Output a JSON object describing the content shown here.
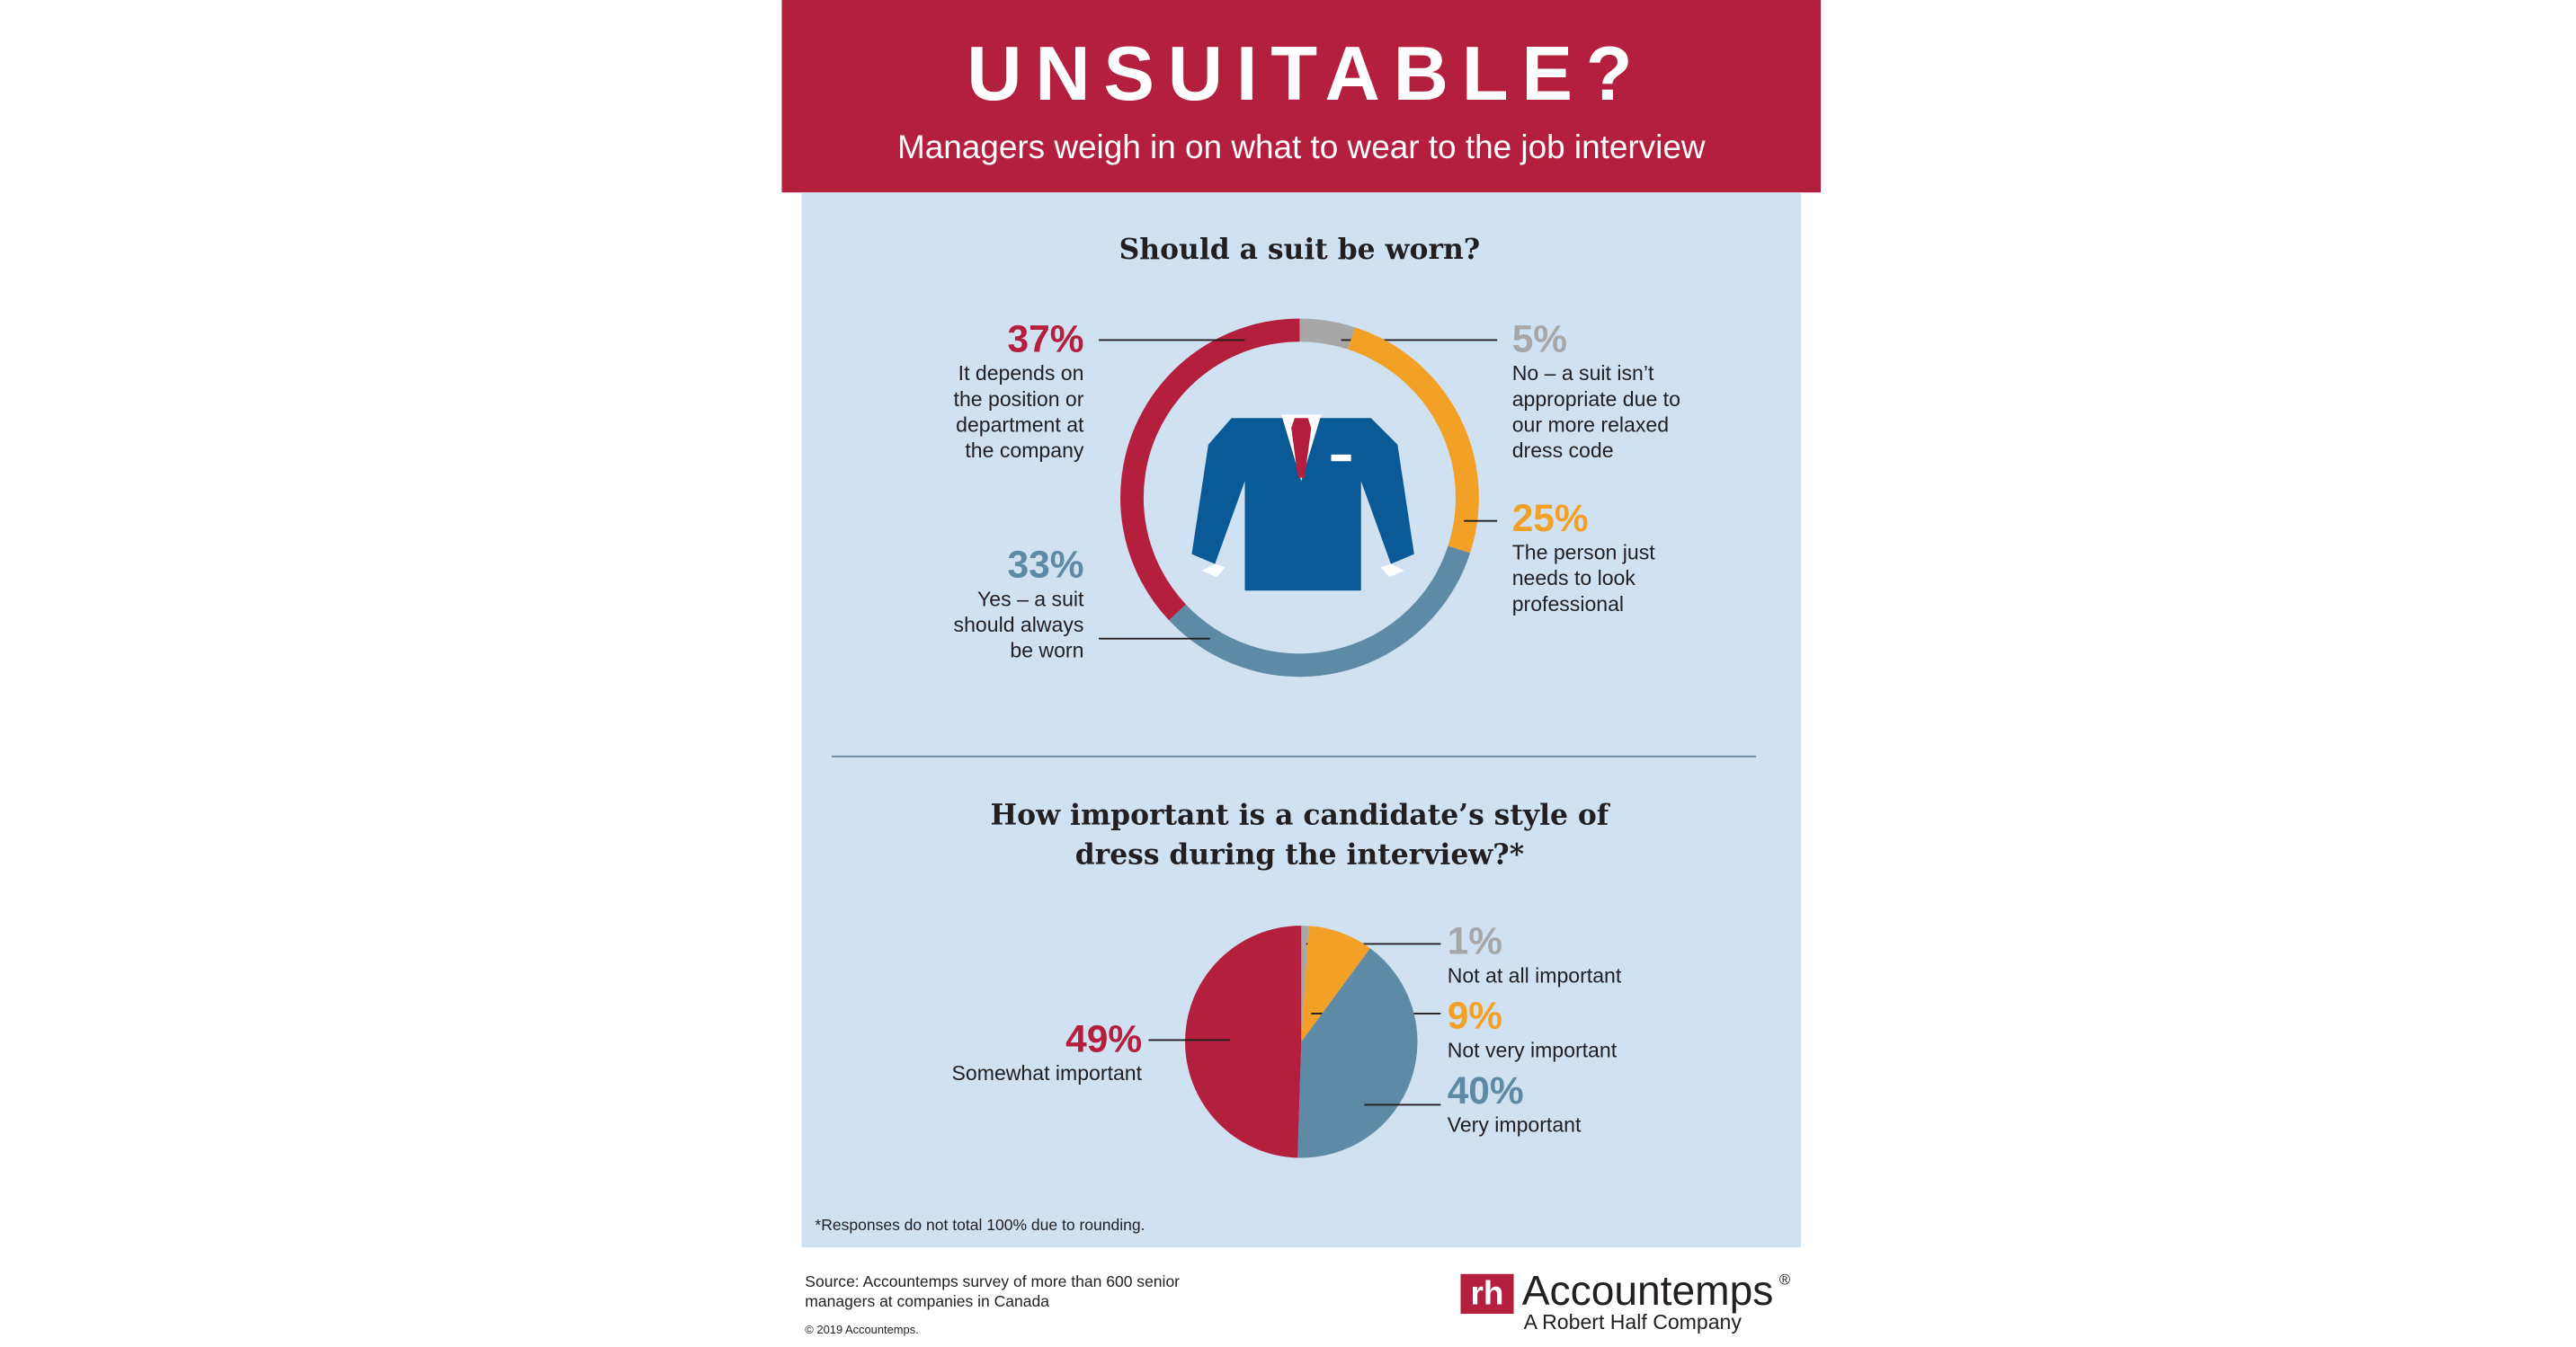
{
  "header": {
    "title": "UNSUITABLE?",
    "subtitle": "Managers weigh in on what to wear to the job interview"
  },
  "chart_data": [
    {
      "type": "donut",
      "title": "Should a suit be worn?",
      "categories": [
        "No – a suit isn’t appropriate due to our more relaxed dress code",
        "The person just needs to look professional",
        "Yes – a suit should always be worn",
        "It depends on the position or department at the company"
      ],
      "values": [
        5,
        25,
        33,
        37
      ],
      "value_labels": [
        "5%",
        "25%",
        "33%",
        "37%"
      ],
      "colors": [
        "#a7a7a7",
        "#f3a126",
        "#5f8aa6",
        "#b31f3c"
      ]
    },
    {
      "type": "pie",
      "title": "How important is a candidate’s style of dress during the interview?*",
      "categories": [
        "Not at all important",
        "Not very important",
        "Very important",
        "Somewhat important"
      ],
      "values": [
        1,
        9,
        40,
        49
      ],
      "value_labels": [
        "1%",
        "9%",
        "40%",
        "49%"
      ],
      "colors": [
        "#a7a7a7",
        "#f3a126",
        "#5f8aa6",
        "#b31f3c"
      ]
    }
  ],
  "footnote": "*Responses do not total 100% due to rounding.",
  "footer": {
    "source": "Source: Accountemps survey of more than 600 senior managers at companies in Canada",
    "copyright": "© 2019 Accountemps.",
    "logo_mark": "rh",
    "logo_name": "Accountemps",
    "logo_registered": "®",
    "logo_tagline": "A Robert Half Company"
  }
}
